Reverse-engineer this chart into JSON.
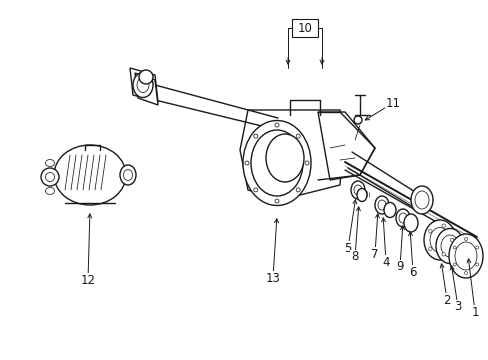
{
  "background_color": "#ffffff",
  "line_color": "#1a1a1a",
  "figure_width": 4.89,
  "figure_height": 3.6,
  "dpi": 100,
  "callout_fs": 8.5,
  "lw_main": 1.0,
  "lw_thin": 0.55,
  "lw_thick": 1.4
}
